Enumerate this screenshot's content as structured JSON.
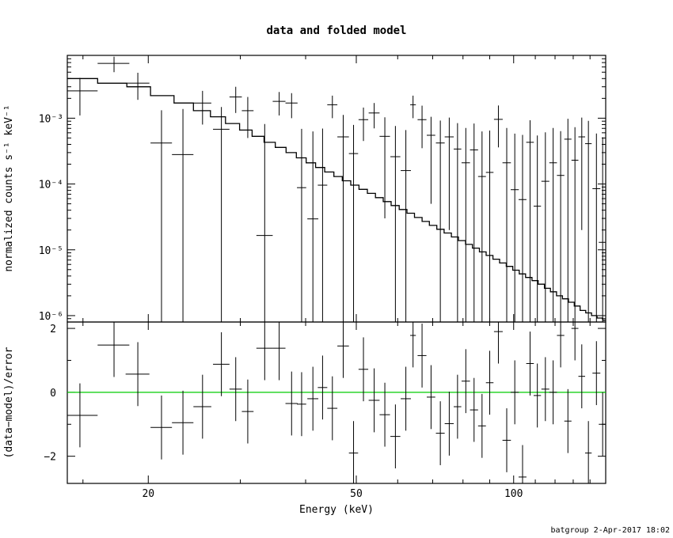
{
  "footer": "batgroup  2-Apr-2017 18:02",
  "chart_data": [
    {
      "type": "scatter",
      "title": "data and folded model",
      "xlabel": "",
      "ylabel": "normalized counts s⁻¹ keV⁻¹",
      "xscale": "log",
      "yscale": "log",
      "xlim": [
        14,
        150
      ],
      "ylim": [
        8e-07,
        0.009
      ],
      "ytick_labels": [
        "10⁻⁶",
        "10⁻⁵",
        "10⁻⁴",
        "10⁻³"
      ],
      "ytick_values": [
        1e-06,
        1e-05,
        0.0001,
        0.001
      ],
      "data": {
        "x": [
          14.8,
          17.2,
          19.1,
          21.2,
          23.3,
          25.4,
          27.6,
          29.4,
          31.0,
          33.4,
          35.6,
          37.6,
          39.3,
          41.3,
          43.1,
          45.0,
          47.2,
          49.4,
          51.6,
          54.1,
          56.7,
          59.4,
          62.2,
          64.2,
          66.8,
          69.5,
          72.4,
          75.3,
          78.1,
          81.0,
          84.0,
          87.0,
          90.0,
          93.5,
          97.0,
          100.5,
          104.0,
          107.5,
          111.0,
          115.0,
          119.0,
          123.0,
          127.0,
          131.0,
          135.0,
          139.0,
          144.0,
          148.0
        ],
        "y": [
          0.0026,
          0.0068,
          0.0034,
          0.00042,
          0.00028,
          0.0017,
          0.00068,
          0.0021,
          0.0013,
          1.65e-05,
          0.0018,
          0.0017,
          8.8e-05,
          2.95e-05,
          9.6e-05,
          0.0016,
          0.00052,
          0.00029,
          0.00095,
          0.0012,
          0.00053,
          0.00026,
          0.00016,
          0.0016,
          0.00095,
          0.00055,
          0.00042,
          0.00052,
          0.00034,
          0.00021,
          0.00033,
          0.00013,
          0.00015,
          0.00096,
          0.00021,
          8.2e-05,
          5.8e-05,
          0.00043,
          4.6e-05,
          0.00011,
          0.00021,
          0.000135,
          0.00048,
          0.00023,
          0.00052,
          0.00041,
          8.5e-05,
          1.3e-05
        ],
        "yerr": [
          0.0015,
          0.0018,
          0.0015,
          0.0009,
          0.0011,
          0.0009,
          0.0008,
          0.0009,
          0.0008,
          0.0008,
          0.0007,
          0.0007,
          0.0006,
          0.0006,
          0.0006,
          0.0006,
          0.0006,
          0.0005,
          0.0005,
          0.0005,
          0.0005,
          0.0005,
          0.0005,
          0.0006,
          0.0006,
          0.0005,
          0.0005,
          0.0005,
          0.0005,
          0.0005,
          0.0005,
          0.0005,
          0.0005,
          0.0006,
          0.0005,
          0.0005,
          0.0005,
          0.0005,
          0.0005,
          0.0005,
          0.0005,
          0.0005,
          0.0005,
          0.0005,
          0.0005,
          0.0005,
          0.0005,
          0.0005
        ],
        "xerr": [
          1.2,
          1.2,
          1.0,
          1.0,
          1.1,
          1.0,
          1.0,
          0.8,
          0.8,
          1.2,
          1.0,
          1.0,
          0.8,
          1.0,
          0.9,
          1.0,
          1.2,
          1.0,
          1.1,
          1.3,
          1.3,
          1.3,
          1.4,
          0.8,
          1.3,
          1.3,
          1.4,
          1.5,
          1.3,
          1.5,
          1.5,
          1.5,
          1.5,
          1.8,
          1.8,
          1.8,
          1.8,
          1.8,
          1.8,
          2.0,
          2.0,
          2.0,
          2.0,
          2.0,
          2.0,
          2.0,
          2.5,
          2.5
        ]
      },
      "model": {
        "edges": [
          14.0,
          16.0,
          18.2,
          20.2,
          22.4,
          24.4,
          26.3,
          28.1,
          29.9,
          31.6,
          33.3,
          35.0,
          36.7,
          38.4,
          40.1,
          41.8,
          43.5,
          45.3,
          47.0,
          48.8,
          50.6,
          52.5,
          54.4,
          56.3,
          58.3,
          60.4,
          62.5,
          64.6,
          66.8,
          69.0,
          71.3,
          73.6,
          76.0,
          78.4,
          80.9,
          83.4,
          86.0,
          88.6,
          91.3,
          94.0,
          96.8,
          99.6,
          102.5,
          105.4,
          108.4,
          111.4,
          114.5,
          117.6,
          120.8,
          124.0,
          127.3,
          130.6,
          134.0,
          137.4,
          140.9,
          144.4,
          148.0,
          150.0
        ],
        "values": [
          0.004,
          0.0034,
          0.003,
          0.0022,
          0.0017,
          0.0013,
          0.00105,
          0.00083,
          0.00066,
          0.00053,
          0.00043,
          0.00036,
          0.0003,
          0.00025,
          0.00021,
          0.000178,
          0.000152,
          0.00013,
          0.000112,
          9.6e-05,
          8.3e-05,
          7.2e-05,
          6.2e-05,
          5.4e-05,
          4.7e-05,
          4.1e-05,
          3.6e-05,
          3.1e-05,
          2.7e-05,
          2.35e-05,
          2.05e-05,
          1.8e-05,
          1.57e-05,
          1.38e-05,
          1.21e-05,
          1.06e-05,
          9.3e-06,
          8.2e-06,
          7.2e-06,
          6.3e-06,
          5.6e-06,
          4.9e-06,
          4.3e-06,
          3.8e-06,
          3.4e-06,
          3e-06,
          2.6e-06,
          2.3e-06,
          2e-06,
          1.8e-06,
          1.6e-06,
          1.4e-06,
          1.2e-06,
          1.1e-06,
          1e-06,
          9.2e-07,
          8.5e-07
        ]
      }
    },
    {
      "type": "scatter",
      "title": "",
      "xlabel": "Energy (keV)",
      "ylabel": "(data−model)/error",
      "xscale": "log",
      "xlim": [
        14,
        150
      ],
      "ylim": [
        -2.85,
        2.2
      ],
      "ytick_labels": [
        "−2",
        "0",
        "2"
      ],
      "ytick_values": [
        -2,
        0,
        2
      ],
      "xtick_labels": [
        "20",
        "50",
        "100"
      ],
      "xtick_values": [
        20,
        50,
        100
      ],
      "zero_line_color": "#00cc00",
      "data": {
        "x": [
          14.8,
          17.2,
          19.1,
          21.2,
          23.3,
          25.4,
          27.6,
          29.4,
          31.0,
          33.4,
          35.6,
          37.6,
          39.3,
          41.3,
          43.1,
          45.0,
          47.2,
          49.4,
          51.6,
          54.1,
          56.7,
          59.4,
          62.2,
          64.2,
          66.8,
          69.5,
          72.4,
          75.3,
          78.1,
          81.0,
          84.0,
          87.0,
          90.0,
          93.5,
          97.0,
          100.5,
          104.0,
          107.5,
          111.0,
          115.0,
          119.0,
          123.0,
          127.0,
          131.0,
          135.0,
          139.0,
          144.0,
          148.0
        ],
        "y": [
          -0.72,
          1.48,
          0.57,
          -1.1,
          -0.95,
          -0.45,
          0.88,
          0.1,
          -0.6,
          1.38,
          1.38,
          -0.35,
          -0.37,
          -0.2,
          0.15,
          -0.5,
          1.45,
          -1.9,
          0.72,
          -0.25,
          -0.7,
          -1.38,
          -0.2,
          1.78,
          1.15,
          -0.15,
          -1.28,
          -0.98,
          -0.45,
          0.35,
          -0.55,
          -1.05,
          0.3,
          1.9,
          -1.5,
          0.0,
          -2.65,
          0.9,
          -0.1,
          0.1,
          0.0,
          1.78,
          -0.9,
          2.0,
          0.5,
          -1.9,
          0.6,
          -1.0
        ],
        "yerr": [
          1.0,
          1.0,
          1.0,
          1.0,
          1.0,
          1.0,
          1.0,
          1.0,
          1.0,
          1.0,
          1.0,
          1.0,
          1.0,
          1.0,
          1.0,
          1.0,
          1.0,
          1.0,
          1.0,
          1.0,
          1.0,
          1.0,
          1.0,
          1.0,
          1.0,
          1.0,
          1.0,
          1.0,
          1.0,
          1.0,
          1.0,
          1.0,
          1.0,
          1.0,
          1.0,
          1.0,
          1.0,
          1.0,
          1.0,
          1.0,
          1.0,
          1.0,
          1.0,
          1.0,
          1.0,
          1.0,
          1.0,
          1.0
        ]
      }
    }
  ]
}
